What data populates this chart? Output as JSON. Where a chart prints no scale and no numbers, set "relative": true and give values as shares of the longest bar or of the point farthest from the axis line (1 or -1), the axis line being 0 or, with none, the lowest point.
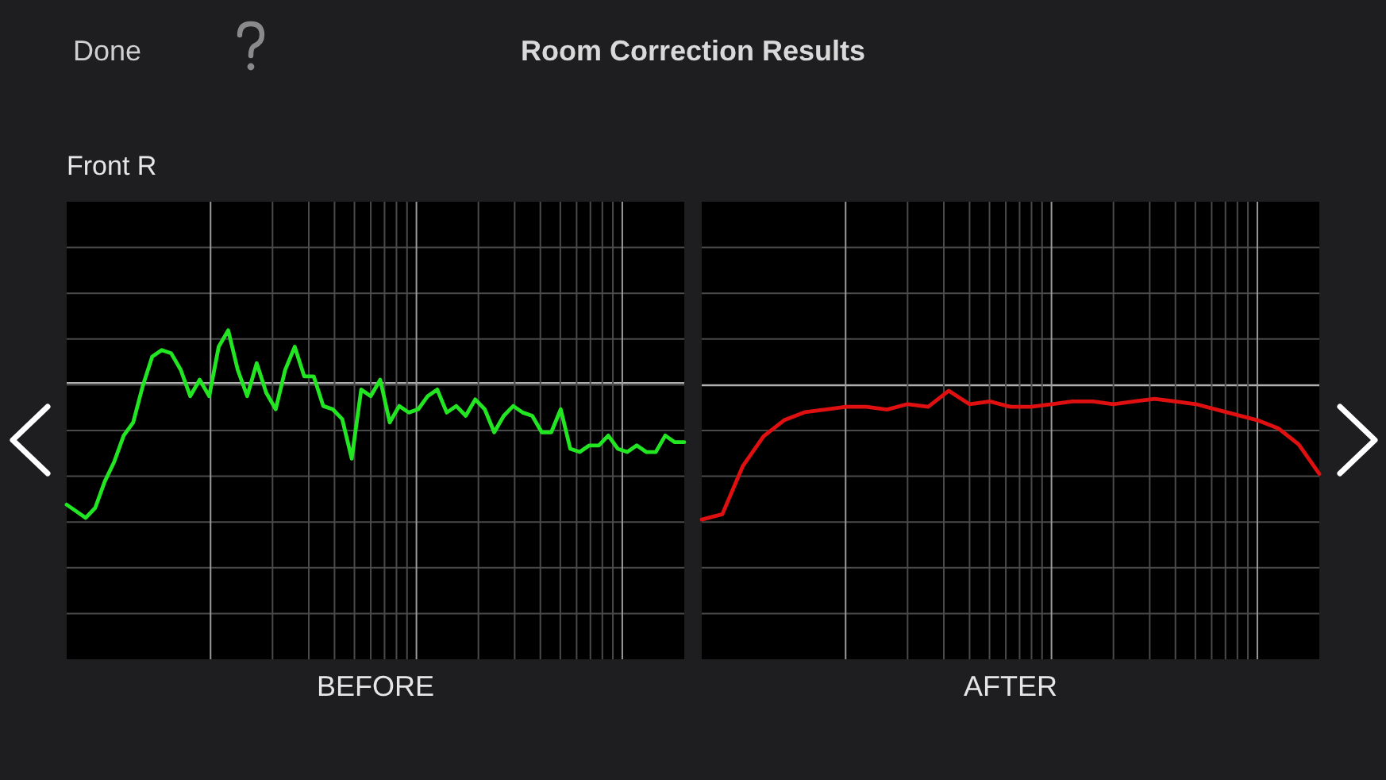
{
  "chart_data": [
    {
      "type": "line",
      "title": "Room Correction Results",
      "subtitle": "Front R",
      "xlabel": "BEFORE",
      "annotations": [
        "Done"
      ],
      "relative": true,
      "grid": true,
      "ref_lines": [
        {
          "axis": "y",
          "value": 0.84,
          "color": "#b0b0b0"
        }
      ],
      "categories": [
        null,
        null,
        null,
        null,
        null,
        null,
        null,
        null,
        null,
        null,
        null,
        null,
        null,
        null,
        null,
        null,
        null,
        null,
        null,
        null,
        null,
        null,
        null,
        null,
        null,
        null,
        null,
        null,
        null,
        null,
        null,
        null,
        null,
        null,
        null,
        null,
        null,
        null,
        null,
        null,
        null,
        null,
        null,
        null,
        null,
        null,
        null,
        null,
        null,
        null,
        null,
        null,
        null,
        null,
        null,
        null,
        null,
        null,
        null,
        null,
        null,
        null,
        null,
        null,
        null,
        null
      ],
      "series": [
        {
          "color": "#22e622",
          "values": [
            0.47,
            0.45,
            0.43,
            0.46,
            0.54,
            0.6,
            0.68,
            0.72,
            0.83,
            0.92,
            0.94,
            0.93,
            0.88,
            0.8,
            0.85,
            0.8,
            0.95,
            1,
            0.88,
            0.8,
            0.9,
            0.81,
            0.76,
            0.88,
            0.95,
            0.86,
            0.86,
            0.77,
            0.76,
            0.73,
            0.61,
            0.82,
            0.8,
            0.85,
            0.72,
            0.77,
            0.75,
            0.76,
            0.8,
            0.82,
            0.75,
            0.77,
            0.74,
            0.79,
            0.76,
            0.69,
            0.74,
            0.77,
            0.75,
            0.74,
            0.69,
            0.69,
            0.76,
            0.64,
            0.63,
            0.65,
            0.65,
            0.68,
            0.64,
            0.63,
            0.65,
            0.63,
            0.63,
            0.68,
            0.66,
            0.66
          ]
        }
      ]
    },
    {
      "type": "line",
      "xlabel": "AFTER",
      "relative": true,
      "grid": true,
      "ref_lines": [
        {
          "axis": "y",
          "value": 1.02,
          "color": "#b0b0b0"
        }
      ],
      "categories": [
        null,
        null,
        null,
        null,
        null,
        null,
        null,
        null,
        null,
        null,
        null,
        null,
        null,
        null,
        null,
        null,
        null,
        null,
        null,
        null,
        null,
        null,
        null,
        null,
        null,
        null,
        null,
        null,
        null,
        null,
        null
      ],
      "series": [
        {
          "color": "#e01010",
          "values": [
            0.52,
            0.54,
            0.72,
            0.83,
            0.89,
            0.92,
            0.93,
            0.94,
            0.94,
            0.93,
            0.95,
            0.94,
            1,
            0.95,
            0.96,
            0.94,
            0.94,
            0.95,
            0.96,
            0.96,
            0.95,
            0.96,
            0.97,
            0.96,
            0.95,
            0.93,
            0.91,
            0.89,
            0.86,
            0.8,
            0.69
          ]
        }
      ]
    }
  ]
}
